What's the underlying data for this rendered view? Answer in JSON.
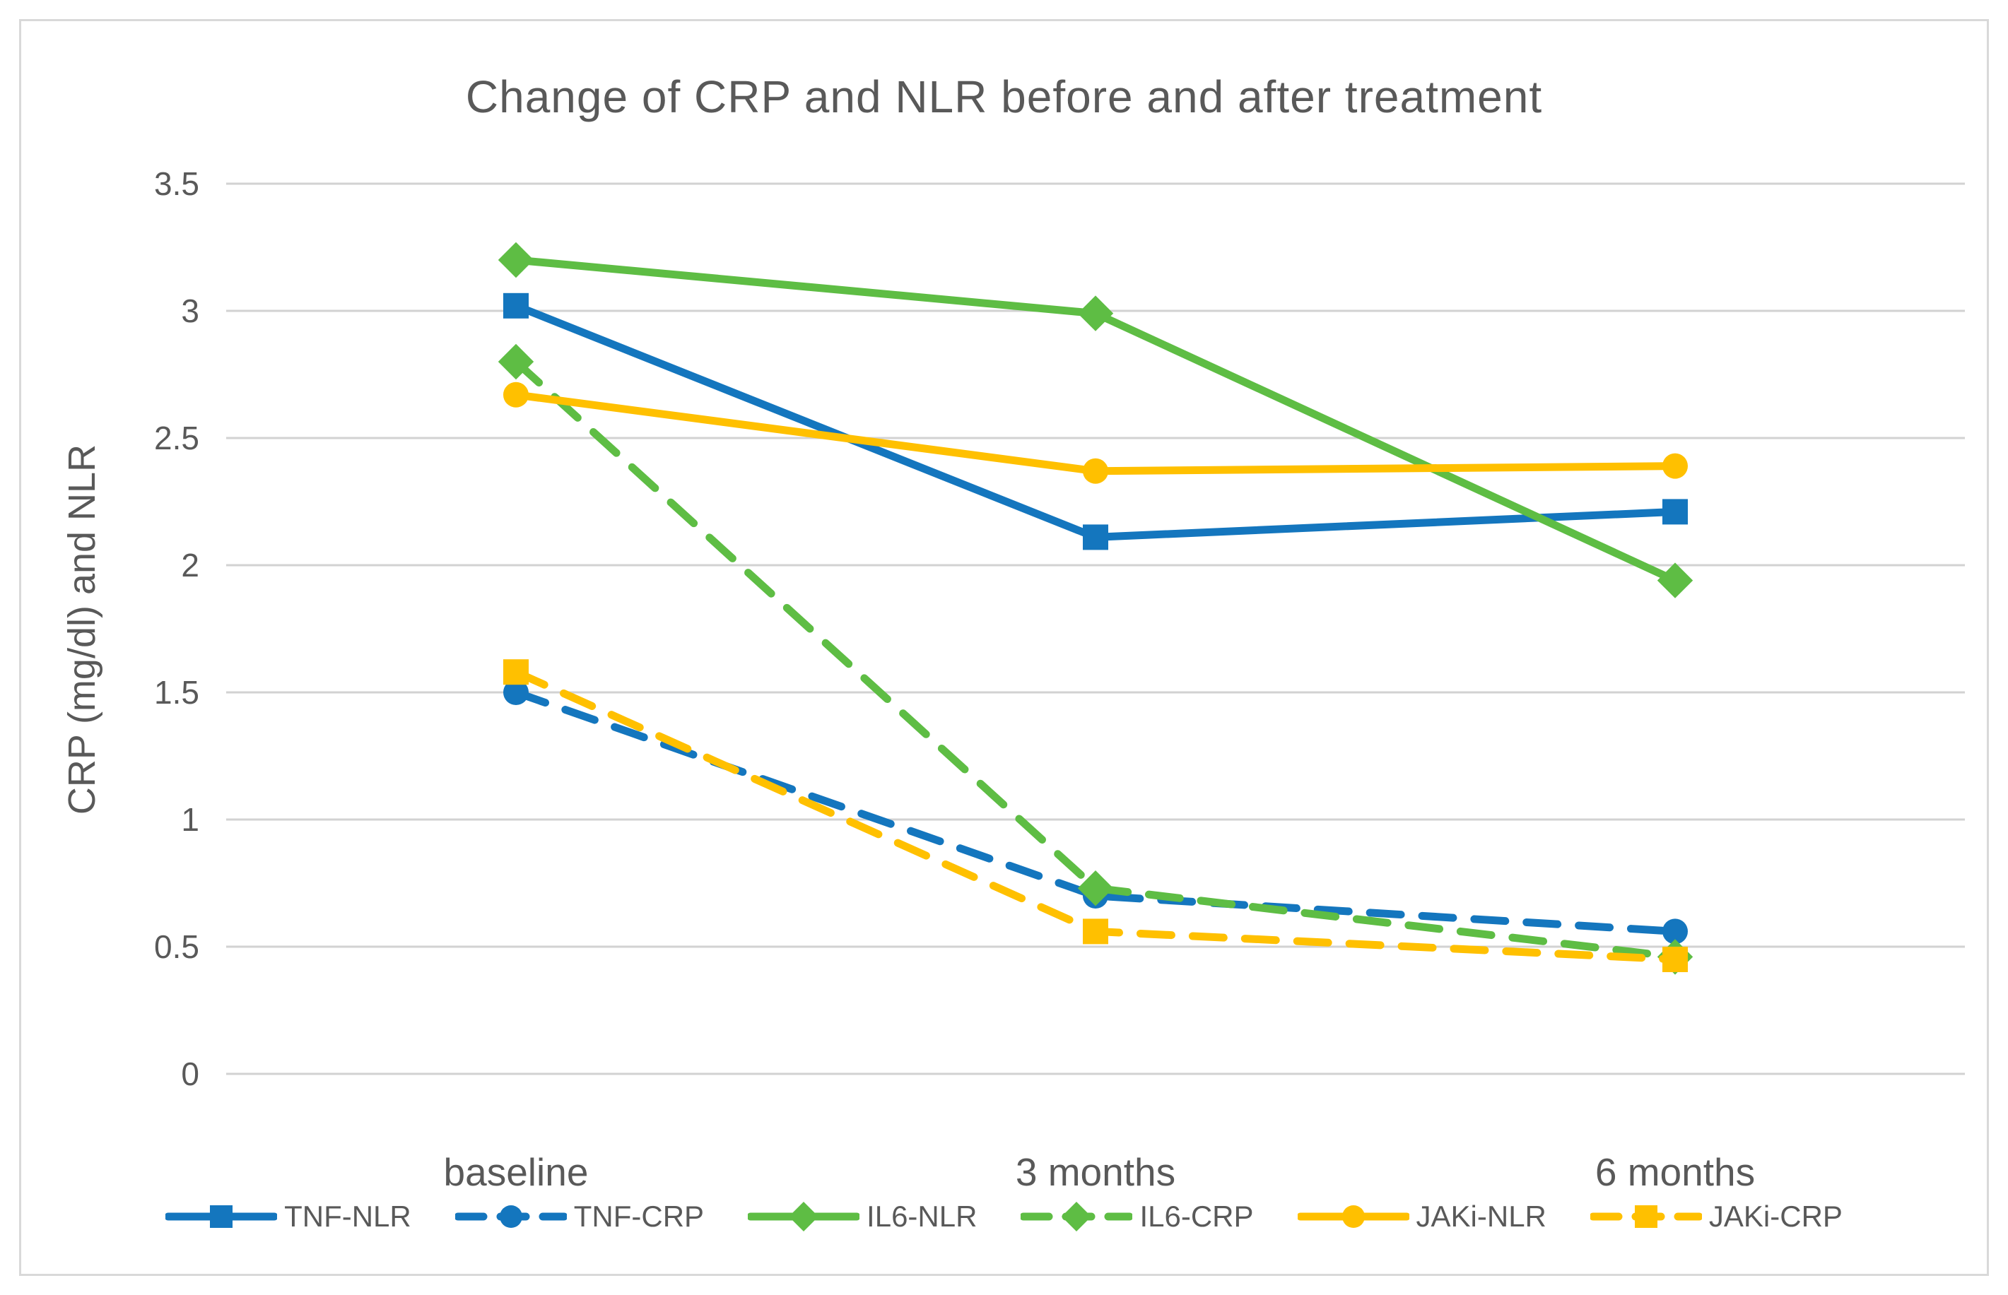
{
  "chart_data": {
    "type": "line",
    "title": "Change of CRP and NLR before and after treatment",
    "ylabel": "CRP (mg/dl) and NLR",
    "xlabel": "",
    "categories": [
      "baseline",
      "3 months",
      "6 months"
    ],
    "ylim": [
      0,
      3.5
    ],
    "ytick_step": 0.5,
    "yticks": [
      "0",
      "0.5",
      "1",
      "1.5",
      "2",
      "2.5",
      "3",
      "3.5"
    ],
    "grid": true,
    "legend_position": "bottom",
    "series": [
      {
        "name": "TNF-NLR",
        "values": [
          3.02,
          2.11,
          2.21
        ],
        "color": "#1476BE",
        "style": "solid",
        "marker": "square"
      },
      {
        "name": "TNF-CRP",
        "values": [
          1.5,
          0.7,
          0.56
        ],
        "color": "#1476BE",
        "style": "dashed",
        "marker": "circle"
      },
      {
        "name": "IL6-NLR",
        "values": [
          3.2,
          2.99,
          1.94
        ],
        "color": "#5EBD44",
        "style": "solid",
        "marker": "diamond"
      },
      {
        "name": "IL6-CRP",
        "values": [
          2.8,
          0.73,
          0.46
        ],
        "color": "#5EBD44",
        "style": "dashed",
        "marker": "diamond"
      },
      {
        "name": "JAKi-NLR",
        "values": [
          2.67,
          2.37,
          2.39
        ],
        "color": "#FFC000",
        "style": "solid",
        "marker": "circle"
      },
      {
        "name": "JAKi-CRP",
        "values": [
          1.58,
          0.56,
          0.45
        ],
        "color": "#FFC000",
        "style": "dashed",
        "marker": "square"
      }
    ],
    "gridline_color": "#D2D2D2",
    "frame_color": "#D9D9D9"
  }
}
